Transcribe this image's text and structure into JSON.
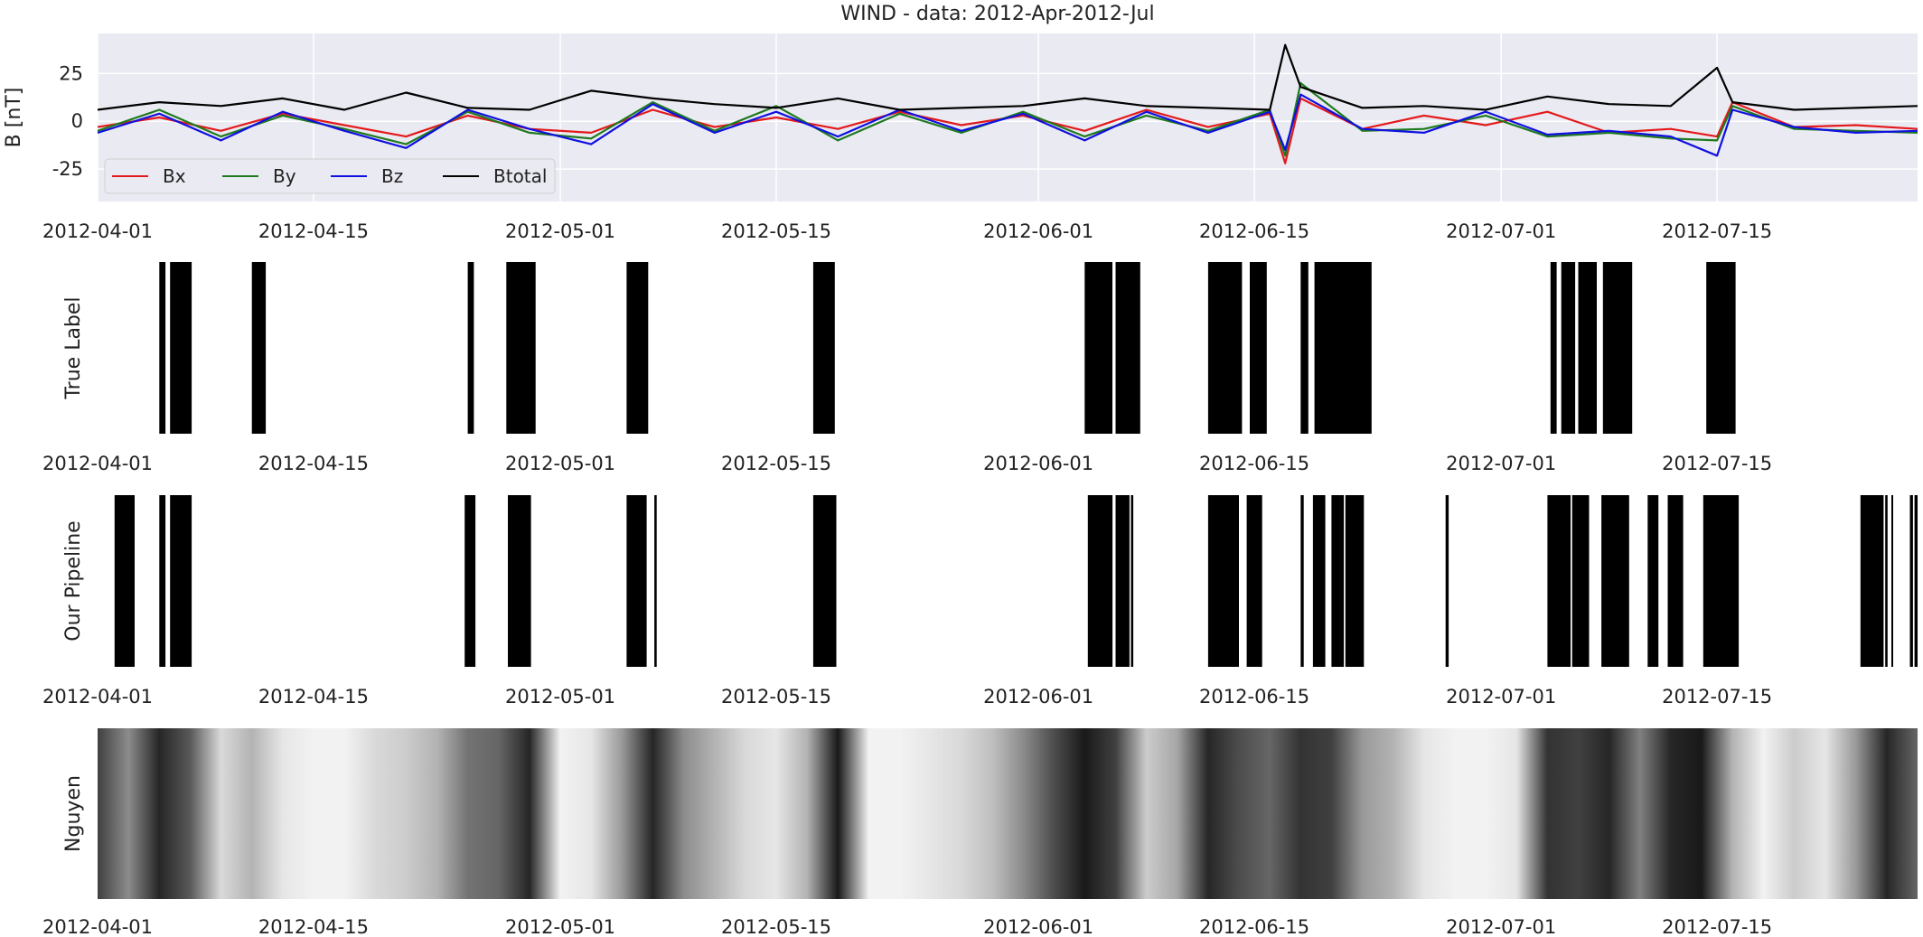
{
  "chart_data": [
    {
      "type": "line",
      "title": "WIND  - data: 2012-Apr-2012-Jul",
      "ylabel": "B [nT]",
      "xlim": [
        "2012-04-01",
        "2012-07-28"
      ],
      "ylim": [
        -42,
        46
      ],
      "yticks": [
        25,
        0,
        -25
      ],
      "xticks": [
        "2012-04-01",
        "2012-04-15",
        "2012-05-01",
        "2012-05-15",
        "2012-06-01",
        "2012-06-15",
        "2012-07-01",
        "2012-07-15"
      ],
      "grid": true,
      "legend_position": "bottom-left",
      "series": [
        {
          "name": "Bx",
          "color": "#e31a1c",
          "x": [
            "2012-04-01",
            "2012-04-05",
            "2012-04-09",
            "2012-04-13",
            "2012-04-17",
            "2012-04-21",
            "2012-04-25",
            "2012-04-29",
            "2012-05-03",
            "2012-05-07",
            "2012-05-11",
            "2012-05-15",
            "2012-05-19",
            "2012-05-23",
            "2012-05-27",
            "2012-05-31",
            "2012-06-04",
            "2012-06-08",
            "2012-06-12",
            "2012-06-16",
            "2012-06-17",
            "2012-06-18",
            "2012-06-22",
            "2012-06-26",
            "2012-06-30",
            "2012-07-04",
            "2012-07-08",
            "2012-07-12",
            "2012-07-15",
            "2012-07-16",
            "2012-07-20",
            "2012-07-24",
            "2012-07-28"
          ],
          "y": [
            -3,
            2,
            -5,
            4,
            -2,
            -8,
            3,
            -4,
            -6,
            6,
            -3,
            2,
            -4,
            5,
            -2,
            3,
            -5,
            6,
            -3,
            4,
            -22,
            12,
            -4,
            3,
            -2,
            5,
            -6,
            -4,
            -8,
            10,
            -3,
            -2,
            -4
          ]
        },
        {
          "name": "By",
          "color": "#1f7a1f",
          "x": [
            "2012-04-01",
            "2012-04-05",
            "2012-04-09",
            "2012-04-13",
            "2012-04-17",
            "2012-04-21",
            "2012-04-25",
            "2012-04-29",
            "2012-05-03",
            "2012-05-07",
            "2012-05-11",
            "2012-05-15",
            "2012-05-19",
            "2012-05-23",
            "2012-05-27",
            "2012-05-31",
            "2012-06-04",
            "2012-06-08",
            "2012-06-12",
            "2012-06-16",
            "2012-06-17",
            "2012-06-18",
            "2012-06-22",
            "2012-06-26",
            "2012-06-30",
            "2012-07-04",
            "2012-07-08",
            "2012-07-12",
            "2012-07-15",
            "2012-07-16",
            "2012-07-20",
            "2012-07-24",
            "2012-07-28"
          ],
          "y": [
            -5,
            6,
            -8,
            3,
            -4,
            -12,
            5,
            -6,
            -9,
            10,
            -5,
            8,
            -10,
            4,
            -6,
            5,
            -8,
            3,
            -5,
            6,
            -18,
            20,
            -5,
            -4,
            3,
            -8,
            -6,
            -9,
            -10,
            8,
            -4,
            -5,
            -6
          ]
        },
        {
          "name": "Bz",
          "color": "#1010e0",
          "x": [
            "2012-04-01",
            "2012-04-05",
            "2012-04-09",
            "2012-04-13",
            "2012-04-17",
            "2012-04-21",
            "2012-04-25",
            "2012-04-29",
            "2012-05-03",
            "2012-05-07",
            "2012-05-11",
            "2012-05-15",
            "2012-05-19",
            "2012-05-23",
            "2012-05-27",
            "2012-05-31",
            "2012-06-04",
            "2012-06-08",
            "2012-06-12",
            "2012-06-16",
            "2012-06-17",
            "2012-06-18",
            "2012-06-22",
            "2012-06-26",
            "2012-06-30",
            "2012-07-04",
            "2012-07-08",
            "2012-07-12",
            "2012-07-15",
            "2012-07-16",
            "2012-07-20",
            "2012-07-24",
            "2012-07-28"
          ],
          "y": [
            -6,
            4,
            -10,
            5,
            -5,
            -14,
            6,
            -4,
            -12,
            9,
            -6,
            5,
            -8,
            6,
            -5,
            4,
            -10,
            5,
            -6,
            5,
            -15,
            14,
            -4,
            -6,
            5,
            -7,
            -5,
            -8,
            -18,
            6,
            -3,
            -6,
            -5
          ]
        },
        {
          "name": "Btotal",
          "color": "#000000",
          "x": [
            "2012-04-01",
            "2012-04-05",
            "2012-04-09",
            "2012-04-13",
            "2012-04-17",
            "2012-04-21",
            "2012-04-25",
            "2012-04-29",
            "2012-05-03",
            "2012-05-07",
            "2012-05-11",
            "2012-05-15",
            "2012-05-19",
            "2012-05-23",
            "2012-05-27",
            "2012-05-31",
            "2012-06-04",
            "2012-06-08",
            "2012-06-12",
            "2012-06-16",
            "2012-06-17",
            "2012-06-18",
            "2012-06-22",
            "2012-06-26",
            "2012-06-30",
            "2012-07-04",
            "2012-07-08",
            "2012-07-12",
            "2012-07-15",
            "2012-07-16",
            "2012-07-20",
            "2012-07-24",
            "2012-07-28"
          ],
          "y": [
            6,
            10,
            8,
            12,
            6,
            15,
            7,
            6,
            16,
            12,
            9,
            7,
            12,
            6,
            7,
            8,
            12,
            8,
            7,
            6,
            40,
            18,
            7,
            8,
            6,
            13,
            9,
            8,
            28,
            10,
            6,
            7,
            8
          ]
        }
      ]
    },
    {
      "type": "heatmap",
      "ylabel": "True Label",
      "xlim": [
        "2012-04-01",
        "2012-07-28"
      ],
      "xticks": [
        "2012-04-01",
        "2012-04-15",
        "2012-05-01",
        "2012-05-15",
        "2012-06-01",
        "2012-06-15",
        "2012-07-01",
        "2012-07-15"
      ],
      "intervals": [
        [
          "2012-04-05",
          "2012-04-05.4"
        ],
        [
          "2012-04-05.7",
          "2012-04-07.1"
        ],
        [
          "2012-04-11",
          "2012-04-11.9"
        ],
        [
          "2012-04-25",
          "2012-04-25.4"
        ],
        [
          "2012-04-27.5",
          "2012-04-29.4"
        ],
        [
          "2012-05-05.3",
          "2012-05-06.7"
        ],
        [
          "2012-05-17.4",
          "2012-05-18.8"
        ],
        [
          "2012-06-04",
          "2012-06-05.8"
        ],
        [
          "2012-06-06",
          "2012-06-07.6"
        ],
        [
          "2012-06-12",
          "2012-06-14.2"
        ],
        [
          "2012-06-14.7",
          "2012-06-15.8"
        ],
        [
          "2012-06-18",
          "2012-06-18.5"
        ],
        [
          "2012-06-18.9",
          "2012-06-22.6"
        ],
        [
          "2012-07-04.2",
          "2012-07-04.6"
        ],
        [
          "2012-07-04.9",
          "2012-07-05.8"
        ],
        [
          "2012-07-06",
          "2012-07-07.2"
        ],
        [
          "2012-07-07.6",
          "2012-07-09.5"
        ],
        [
          "2012-07-14.3",
          "2012-07-16.2"
        ]
      ]
    },
    {
      "type": "heatmap",
      "ylabel": "Our Pipeline",
      "xlim": [
        "2012-04-01",
        "2012-07-28"
      ],
      "xticks": [
        "2012-04-01",
        "2012-04-15",
        "2012-05-01",
        "2012-05-15",
        "2012-06-01",
        "2012-06-15",
        "2012-07-01",
        "2012-07-15"
      ],
      "intervals": [
        [
          "2012-04-02.1",
          "2012-04-03.4"
        ],
        [
          "2012-04-05",
          "2012-04-05.4"
        ],
        [
          "2012-04-05.7",
          "2012-04-07.1"
        ],
        [
          "2012-04-24.8",
          "2012-04-25.5"
        ],
        [
          "2012-04-27.6",
          "2012-04-29.1"
        ],
        [
          "2012-05-05.3",
          "2012-05-06.6"
        ],
        [
          "2012-05-07.1",
          "2012-05-07.25"
        ],
        [
          "2012-05-17.4",
          "2012-05-18.9"
        ],
        [
          "2012-06-04.2",
          "2012-06-05.8"
        ],
        [
          "2012-06-06",
          "2012-06-06.9"
        ],
        [
          "2012-06-07",
          "2012-06-07.15"
        ],
        [
          "2012-06-12",
          "2012-06-14"
        ],
        [
          "2012-06-14.5",
          "2012-06-15.5"
        ],
        [
          "2012-06-18",
          "2012-06-18.2"
        ],
        [
          "2012-06-18.8",
          "2012-06-19.6"
        ],
        [
          "2012-06-20",
          "2012-06-20.8"
        ],
        [
          "2012-06-20.9",
          "2012-06-22.1"
        ],
        [
          "2012-06-27.4",
          "2012-06-27.6"
        ],
        [
          "2012-07-04",
          "2012-07-05.5"
        ],
        [
          "2012-07-05.6",
          "2012-07-06.7"
        ],
        [
          "2012-07-07.5",
          "2012-07-09.3"
        ],
        [
          "2012-07-10.5",
          "2012-07-11.2"
        ],
        [
          "2012-07-11.8",
          "2012-07-12.8"
        ],
        [
          "2012-07-14.1",
          "2012-07-16.4"
        ],
        [
          "2012-07-24.3",
          "2012-07-25.8"
        ],
        [
          "2012-07-25.9",
          "2012-07-26.05"
        ],
        [
          "2012-07-26.3",
          "2012-07-26.4"
        ],
        [
          "2012-07-27.5",
          "2012-07-27.7"
        ],
        [
          "2012-07-27.8",
          "2012-07-28"
        ]
      ]
    },
    {
      "type": "heatmap",
      "ylabel": "Nguyen",
      "xlim": [
        "2012-04-01",
        "2012-07-28"
      ],
      "xticks": [
        "2012-04-01",
        "2012-04-15",
        "2012-05-01",
        "2012-05-15",
        "2012-06-01",
        "2012-06-15",
        "2012-07-01",
        "2012-07-15"
      ],
      "x": [
        "2012-04-01",
        "2012-04-03",
        "2012-04-05",
        "2012-04-07",
        "2012-04-09",
        "2012-04-11",
        "2012-04-13",
        "2012-04-15",
        "2012-04-17",
        "2012-04-19",
        "2012-04-21",
        "2012-04-23",
        "2012-04-25",
        "2012-04-27",
        "2012-04-29",
        "2012-05-01",
        "2012-05-03",
        "2012-05-05",
        "2012-05-07",
        "2012-05-09",
        "2012-05-11",
        "2012-05-13",
        "2012-05-15",
        "2012-05-17",
        "2012-05-19",
        "2012-05-21",
        "2012-05-23",
        "2012-05-25",
        "2012-05-27",
        "2012-05-29",
        "2012-05-31",
        "2012-06-02",
        "2012-06-04",
        "2012-06-06",
        "2012-06-08",
        "2012-06-10",
        "2012-06-12",
        "2012-06-14",
        "2012-06-16",
        "2012-06-18",
        "2012-06-20",
        "2012-06-22",
        "2012-06-24",
        "2012-06-26",
        "2012-06-28",
        "2012-06-30",
        "2012-07-02",
        "2012-07-04",
        "2012-07-06",
        "2012-07-08",
        "2012-07-10",
        "2012-07-12",
        "2012-07-14",
        "2012-07-16",
        "2012-07-18",
        "2012-07-20",
        "2012-07-22",
        "2012-07-24",
        "2012-07-26",
        "2012-07-28"
      ],
      "values": [
        0.75,
        0.45,
        0.85,
        0.65,
        0.15,
        0.3,
        0.1,
        0.05,
        0.05,
        0.15,
        0.2,
        0.3,
        0.55,
        0.6,
        0.85,
        0.05,
        0.1,
        0.4,
        0.85,
        0.45,
        0.3,
        0.15,
        0.1,
        0.3,
        0.9,
        0.05,
        0.05,
        0.1,
        0.15,
        0.25,
        0.45,
        0.7,
        0.9,
        0.75,
        0.2,
        0.35,
        0.85,
        0.7,
        0.6,
        0.8,
        0.75,
        0.4,
        0.3,
        0.1,
        0.05,
        0.05,
        0.1,
        0.8,
        0.75,
        0.85,
        0.5,
        0.85,
        0.9,
        0.3,
        0.05,
        0.2,
        0.1,
        0.4,
        0.85,
        0.6
      ]
    }
  ]
}
